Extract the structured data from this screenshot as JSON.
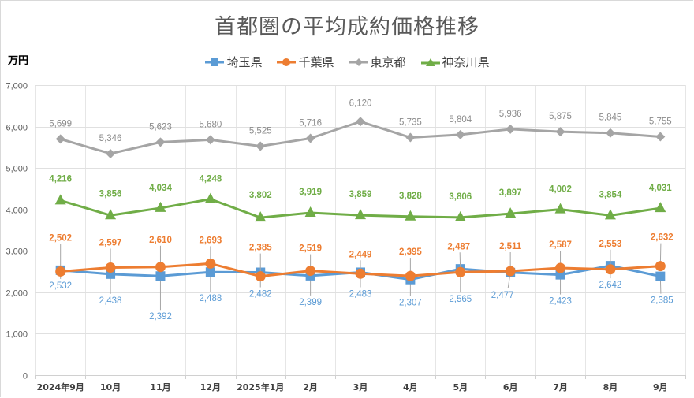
{
  "chart_data": {
    "type": "line",
    "title": "首都圏の平均成約価格推移",
    "ylabel": "万円",
    "xlabel": "",
    "ylim": [
      0,
      7000
    ],
    "ytick_step": 1000,
    "yticks": [
      "0",
      "1,000",
      "2,000",
      "3,000",
      "4,000",
      "5,000",
      "6,000",
      "7,000"
    ],
    "grid": {
      "horizontal": true,
      "vertical": true
    },
    "legend_position": "top-center",
    "categories": [
      "2024年9月",
      "10月",
      "11月",
      "12月",
      "2025年1月",
      "2月",
      "3月",
      "4月",
      "5月",
      "6月",
      "7月",
      "8月",
      "9月"
    ],
    "series": [
      {
        "name": "埼玉県",
        "color": "#5b9bd5",
        "marker": "square",
        "label_color": "#5b9bd5",
        "label_weight": "normal",
        "values": [
          2532,
          2438,
          2392,
          2488,
          2482,
          2399,
          2483,
          2307,
          2565,
          2477,
          2423,
          2642,
          2385
        ],
        "labels": [
          "2,532",
          "2,438",
          "2,392",
          "2,488",
          "2,482",
          "2,399",
          "2,483",
          "2,307",
          "2,565",
          "2,477",
          "2,423",
          "2,642",
          "2,385"
        ]
      },
      {
        "name": "千葉県",
        "color": "#ed7d31",
        "marker": "circle",
        "label_color": "#ed7d31",
        "label_weight": "bold",
        "values": [
          2502,
          2597,
          2610,
          2693,
          2385,
          2519,
          2449,
          2395,
          2487,
          2511,
          2587,
          2553,
          2632
        ],
        "labels": [
          "2,502",
          "2,597",
          "2,610",
          "2,693",
          "2,385",
          "2,519",
          "2,449",
          "2,395",
          "2,487",
          "2,511",
          "2,587",
          "2,553",
          "2,632"
        ]
      },
      {
        "name": "東京都",
        "color": "#a5a5a5",
        "marker": "diamond",
        "label_color": "#8c8c8c",
        "label_weight": "normal",
        "values": [
          5699,
          5346,
          5623,
          5680,
          5525,
          5716,
          6120,
          5735,
          5804,
          5936,
          5875,
          5845,
          5755
        ],
        "labels": [
          "5,699",
          "5,346",
          "5,623",
          "5,680",
          "5,525",
          "5,716",
          "6,120",
          "5,735",
          "5,804",
          "5,936",
          "5,875",
          "5,845",
          "5,755"
        ]
      },
      {
        "name": "神奈川県",
        "color": "#70ad47",
        "marker": "triangle",
        "label_color": "#70ad47",
        "label_weight": "bold",
        "values": [
          4216,
          3856,
          4034,
          4248,
          3802,
          3919,
          3859,
          3828,
          3806,
          3897,
          4002,
          3854,
          4031
        ],
        "labels": [
          "4,216",
          "3,856",
          "4,034",
          "4,248",
          "3,802",
          "3,919",
          "3,859",
          "3,828",
          "3,806",
          "3,897",
          "4,002",
          "3,854",
          "4,031"
        ]
      }
    ]
  }
}
